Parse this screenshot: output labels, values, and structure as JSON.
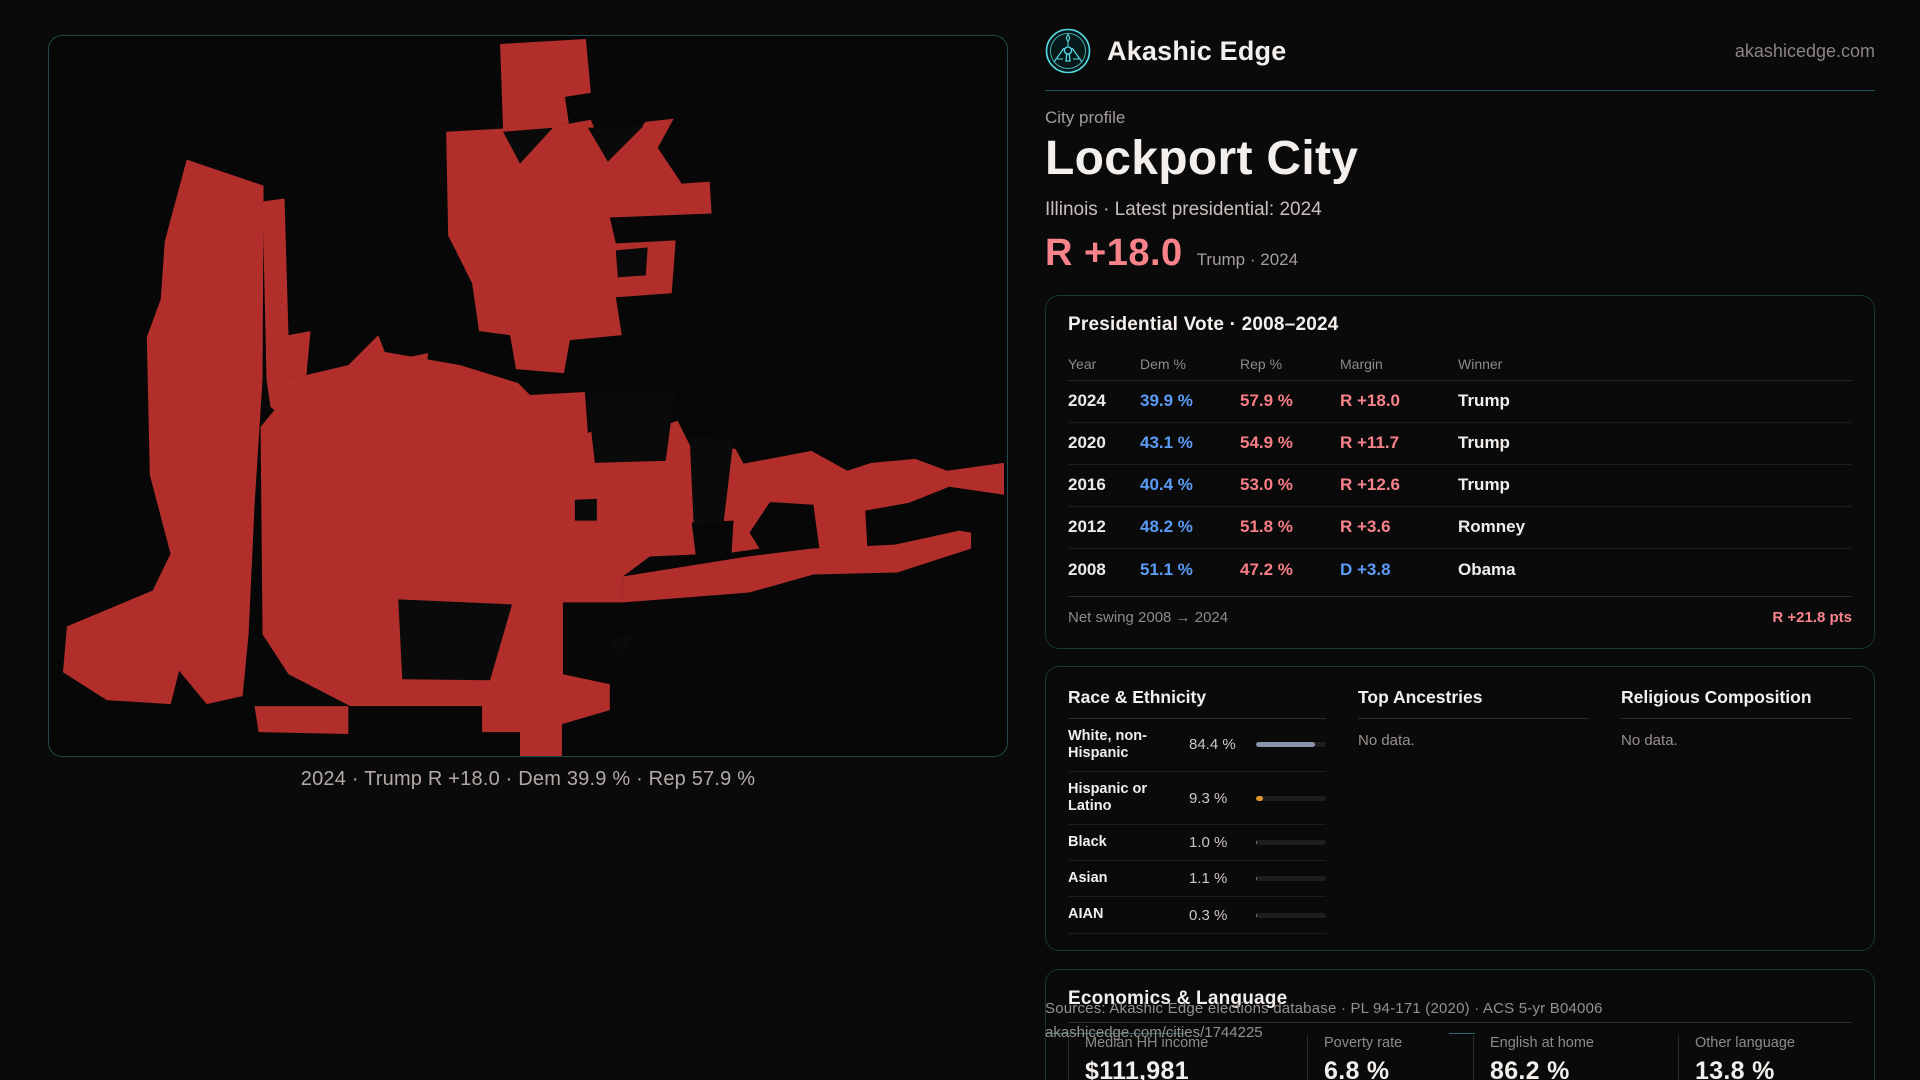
{
  "brand": {
    "name": "Akashic Edge",
    "domain": "akashicedge.com"
  },
  "profile": {
    "eyebrow": "City profile",
    "title": "Lockport City",
    "subtitle": "Illinois · Latest presidential: 2024",
    "hero_margin": "R +18.0",
    "hero_context": "Trump · 2024"
  },
  "map": {
    "caption": "2024 · Trump R +18.0 · Dem 39.9 % · Rep 57.9 %"
  },
  "vote_card": {
    "title": "Presidential Vote · 2008–2024",
    "columns": [
      "Year",
      "Dem %",
      "Rep %",
      "Margin",
      "Winner"
    ],
    "rows": [
      {
        "year": "2024",
        "dem": "39.9 %",
        "rep": "57.9 %",
        "margin": "R +18.0",
        "margin_party": "R",
        "winner": "Trump"
      },
      {
        "year": "2020",
        "dem": "43.1 %",
        "rep": "54.9 %",
        "margin": "R +11.7",
        "margin_party": "R",
        "winner": "Trump"
      },
      {
        "year": "2016",
        "dem": "40.4 %",
        "rep": "53.0 %",
        "margin": "R +12.6",
        "margin_party": "R",
        "winner": "Trump"
      },
      {
        "year": "2012",
        "dem": "48.2 %",
        "rep": "51.8 %",
        "margin": "R +3.6",
        "margin_party": "R",
        "winner": "Romney"
      },
      {
        "year": "2008",
        "dem": "51.1 %",
        "rep": "47.2 %",
        "margin": "D +3.8",
        "margin_party": "D",
        "winner": "Obama"
      }
    ],
    "net_swing_label": "Net swing 2008 → 2024",
    "net_swing_value": "R +21.8 pts"
  },
  "race_card": {
    "title": "Race & Ethnicity",
    "rows": [
      {
        "label": "White, non-Hispanic",
        "value": "84.4 %",
        "pct": 84.4,
        "color": "#8795ab"
      },
      {
        "label": "Hispanic or Latino",
        "value": "9.3 %",
        "pct": 9.3,
        "color": "#e0992f"
      },
      {
        "label": "Black",
        "value": "1.0 %",
        "pct": 1.0,
        "color": "#6b7890"
      },
      {
        "label": "Asian",
        "value": "1.1 %",
        "pct": 1.1,
        "color": "#6b7890"
      },
      {
        "label": "AIAN",
        "value": "0.3 %",
        "pct": 0.3,
        "color": "#6b7890"
      }
    ]
  },
  "ancestries_card": {
    "title": "Top Ancestries",
    "empty": "No data."
  },
  "religion_card": {
    "title": "Religious Composition",
    "empty": "No data."
  },
  "econ_card": {
    "title": "Economics & Language",
    "stats": [
      {
        "label": "Median HH income",
        "value": "$111,981"
      },
      {
        "label": "Poverty rate",
        "value": "6.8 %"
      },
      {
        "label": "English at home",
        "value": "86.2 %"
      },
      {
        "label": "Other language",
        "value": "13.8 %"
      }
    ]
  },
  "footer": {
    "line1": "Sources: Akashic Edge elections database · PL 94-171 (2020) · ACS 5-yr B04006",
    "line2": "akashicedge.com/cities/1744225"
  },
  "colors": {
    "accent": "#56d9e4",
    "map-red": "#b22e2b",
    "dem": "#5a9cf8",
    "rep": "#f87d85",
    "coral": "#f8838b"
  }
}
